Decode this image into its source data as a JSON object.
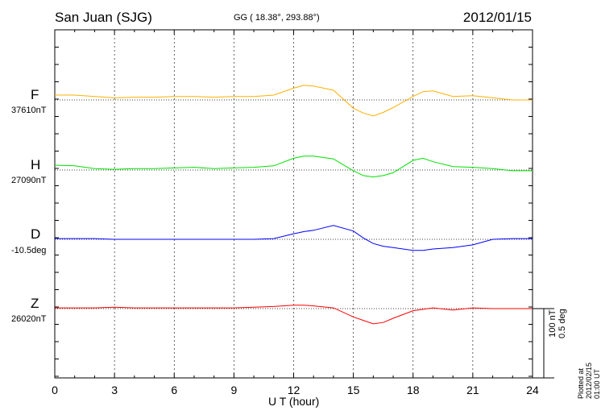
{
  "chart_data": {
    "type": "line",
    "title": "San Juan (SJG)",
    "subtitle": "GG ( 18.38°, 293.88°)",
    "date": "2012/01/15",
    "xlabel": "U T (hour)",
    "xlim": [
      0,
      24
    ],
    "xticks": [
      "0",
      "3",
      "6",
      "9",
      "12",
      "15",
      "18",
      "21",
      "24"
    ],
    "scale_bar": [
      "100 nT",
      "0.5 deg"
    ],
    "footer": "Plotted at 2012/02/15 01:00 UT",
    "x": [
      0,
      1,
      2,
      3,
      4,
      5,
      6,
      7,
      8,
      9,
      10,
      11,
      12,
      12.5,
      13,
      14,
      15,
      15.5,
      16,
      16.5,
      17,
      18,
      18.5,
      19,
      20,
      21,
      22,
      23,
      24
    ],
    "series": [
      {
        "name": "F",
        "baseline": "37610nT",
        "color": "#ffb000",
        "values": [
          7,
          7,
          5,
          3,
          4,
          4,
          5,
          5,
          4,
          5,
          5,
          7,
          17,
          21,
          20,
          14,
          -12,
          -19,
          -23,
          -18,
          -11,
          5,
          12,
          13,
          5,
          6,
          3,
          0,
          0
        ]
      },
      {
        "name": "H",
        "baseline": "27090nT",
        "color": "#00e000",
        "values": [
          7,
          6,
          2,
          1,
          2,
          2,
          3,
          4,
          2,
          3,
          4,
          6,
          17,
          20,
          20,
          16,
          -1,
          -8,
          -10,
          -8,
          -4,
          14,
          17,
          12,
          5,
          4,
          2,
          -1,
          -1
        ]
      },
      {
        "name": "D",
        "baseline": "-10.5deg",
        "color": "#0000ff",
        "values": [
          1,
          1,
          1,
          0,
          0,
          0,
          0,
          0,
          0,
          0,
          0,
          1,
          8,
          11,
          13,
          20,
          12,
          2,
          -6,
          -10,
          -12,
          -16,
          -16,
          -14,
          -12,
          -8,
          0,
          1,
          1
        ]
      },
      {
        "name": "Z",
        "baseline": "26020nT",
        "color": "#ff0000",
        "values": [
          1,
          1,
          1,
          2,
          1,
          1,
          1,
          1,
          1,
          1,
          2,
          3,
          5,
          5,
          4,
          1,
          -12,
          -17,
          -22,
          -20,
          -14,
          -3,
          -1,
          1,
          -2,
          1,
          0,
          0,
          0
        ]
      }
    ]
  }
}
